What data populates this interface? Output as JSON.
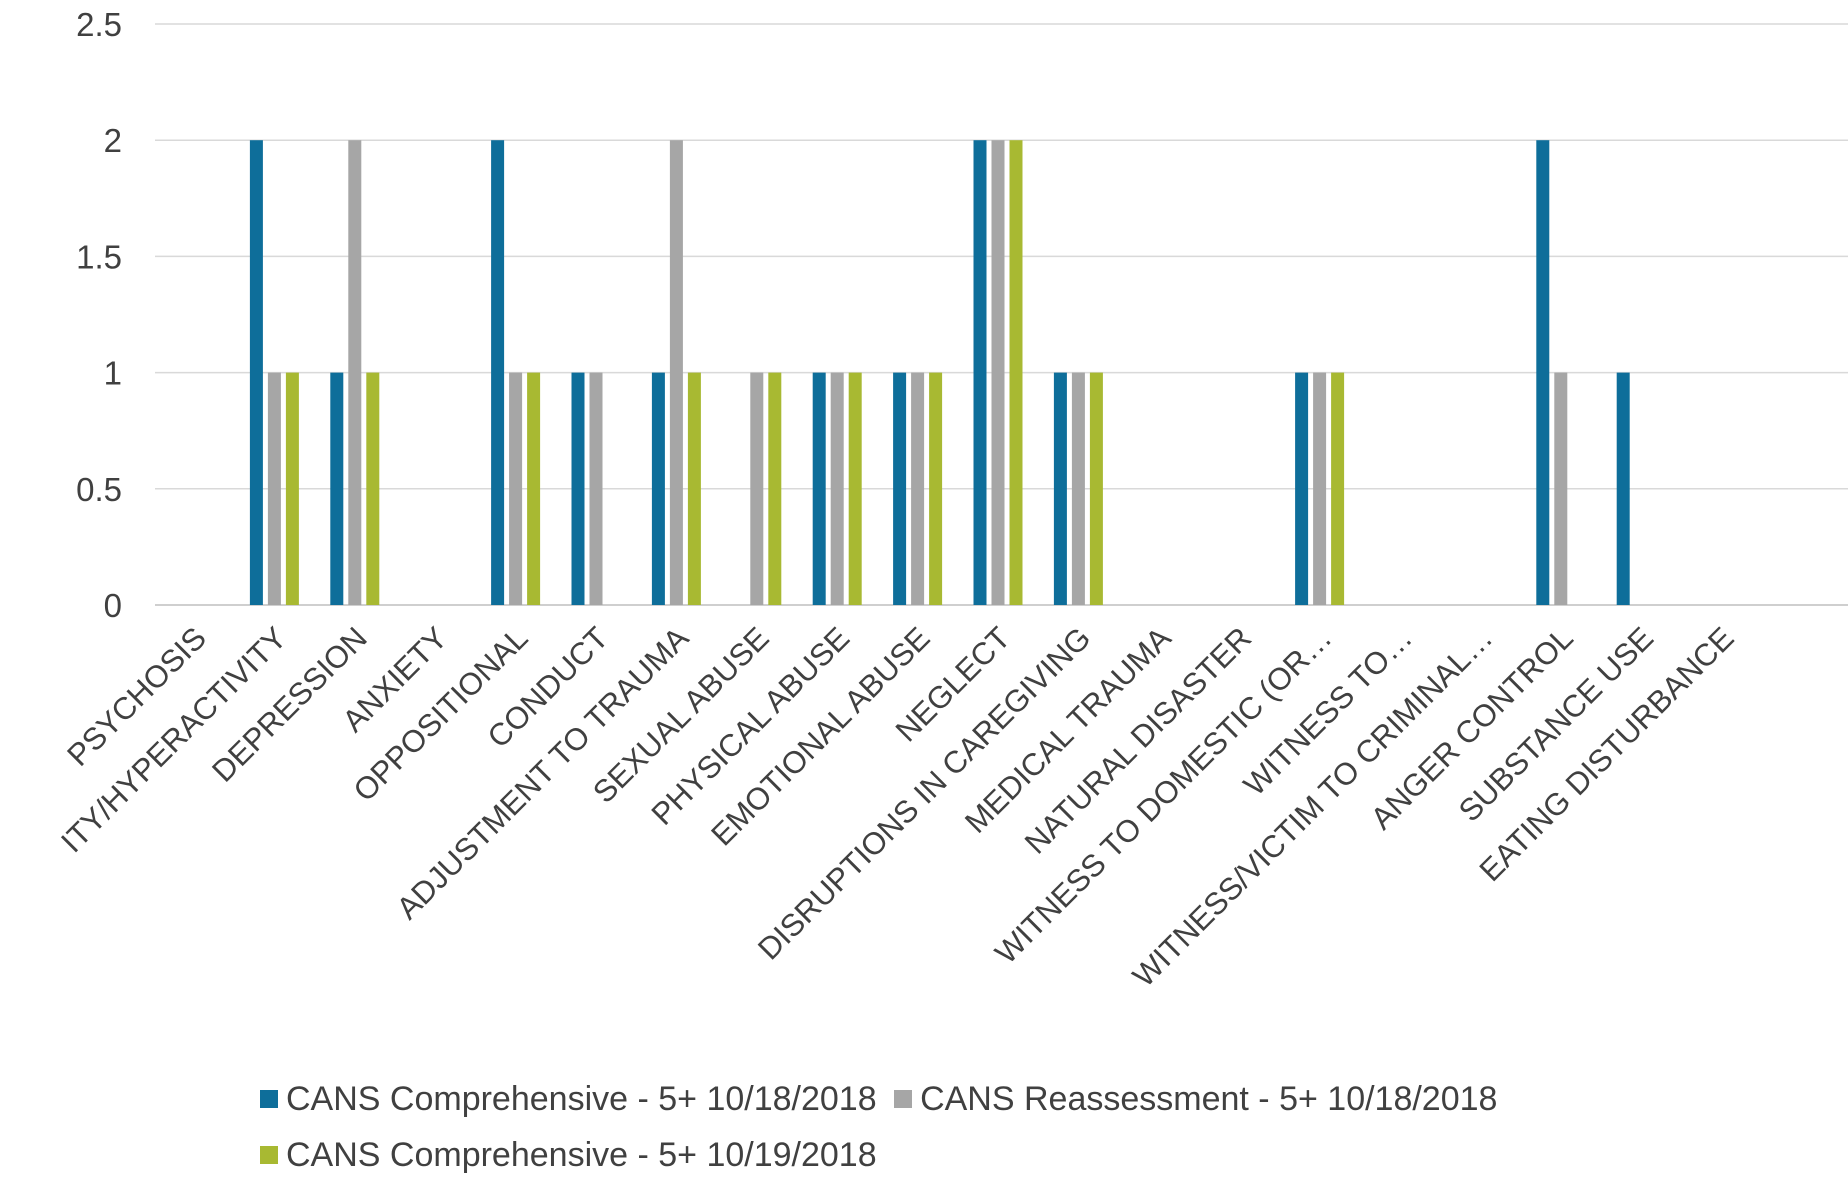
{
  "chart_data": {
    "type": "bar",
    "title": "",
    "xlabel": "",
    "ylabel": "",
    "ylim": [
      0,
      2.5
    ],
    "yticks": [
      "0",
      "0.5",
      "1",
      "1.5",
      "2",
      "2.5"
    ],
    "grid": true,
    "legend_position": "bottom",
    "categories": [
      "PSYCHOSIS",
      "ITY/HYPERACTIVITY",
      "DEPRESSION",
      "ANXIETY",
      "OPPOSITIONAL",
      "CONDUCT",
      "ADJUSTMENT TO TRAUMA",
      "SEXUAL ABUSE",
      "PHYSICAL ABUSE",
      "EMOTIONAL ABUSE",
      "NEGLECT",
      "DISRUPTIONS IN CAREGIVING",
      "MEDICAL TRAUMA",
      "NATURAL DISASTER",
      "WITNESS TO DOMESTIC (OR…",
      "WITNESS TO…",
      "WITNESS/VICTIM TO CRIMINAL…",
      "ANGER CONTROL",
      "SUBSTANCE USE",
      "EATING DISTURBANCE"
    ],
    "series": [
      {
        "name": "CANS Comprehensive - 5+ 10/18/2018",
        "color": "#0E6E9A",
        "values": [
          0,
          2,
          1,
          0,
          2,
          1,
          1,
          0,
          1,
          1,
          2,
          1,
          0,
          0,
          1,
          0,
          0,
          2,
          1,
          0
        ]
      },
      {
        "name": "CANS Reassessment - 5+ 10/18/2018",
        "color": "#A6A6A6",
        "values": [
          0,
          1,
          2,
          0,
          1,
          1,
          2,
          1,
          1,
          1,
          2,
          1,
          0,
          0,
          1,
          0,
          0,
          1,
          0,
          0
        ]
      },
      {
        "name": "CANS Comprehensive - 5+ 10/19/2018",
        "color": "#A8B932",
        "values": [
          0,
          1,
          1,
          0,
          1,
          0,
          1,
          1,
          1,
          1,
          2,
          1,
          0,
          0,
          1,
          0,
          0,
          0,
          0,
          0
        ]
      }
    ]
  }
}
